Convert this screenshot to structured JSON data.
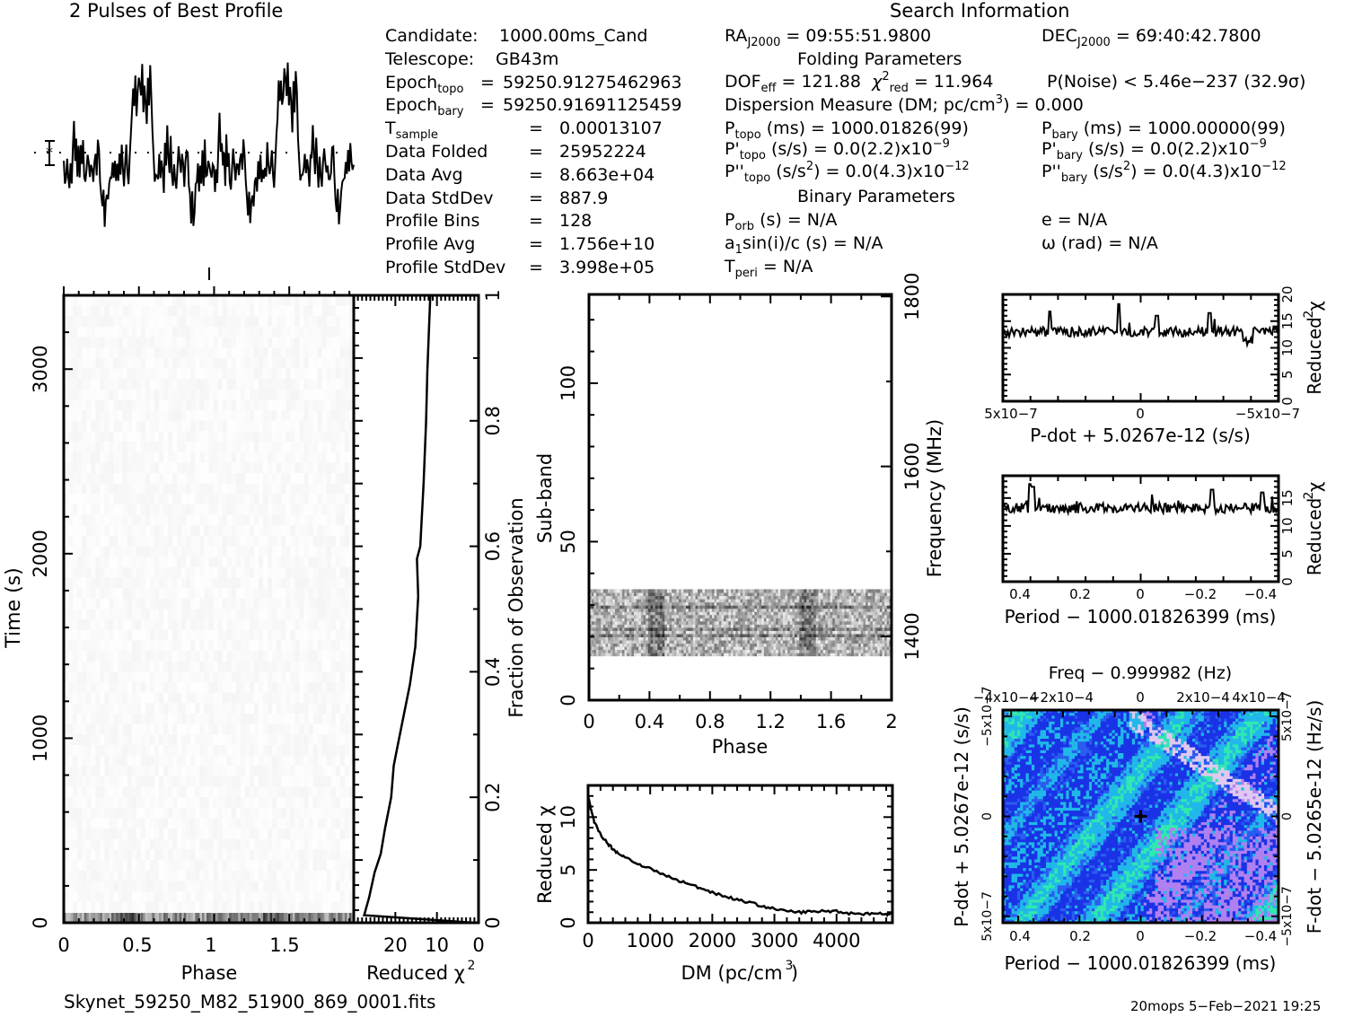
{
  "titles": {
    "profile": "2 Pulses of Best Profile",
    "search_info": "Search Information",
    "folding_params": "Folding Parameters",
    "binary_params": "Binary Parameters"
  },
  "left_info": [
    {
      "label": "Candidate:",
      "value": "1000.00ms_Cand"
    },
    {
      "label": "Telescope:",
      "value": "GB43m"
    },
    {
      "label": "Epoch",
      "sub": "topo",
      "eq": "=",
      "value": "59250.91275462963"
    },
    {
      "label": "Epoch",
      "sub": "bary",
      "eq": "=",
      "value": "59250.91691125459"
    },
    {
      "label": "T",
      "sub": "sample",
      "eq": "=",
      "value": "0.00013107"
    },
    {
      "label": "Data Folded",
      "eq": "=",
      "value": "25952224"
    },
    {
      "label": "Data Avg",
      "eq": "=",
      "value": "8.663e+04"
    },
    {
      "label": "Data StdDev",
      "eq": "=",
      "value": "887.9"
    },
    {
      "label": "Profile Bins",
      "eq": "=",
      "value": "128"
    },
    {
      "label": "Profile Avg",
      "eq": "=",
      "value": "1.756e+10"
    },
    {
      "label": "Profile StdDev",
      "eq": "=",
      "value": "3.998e+05"
    }
  ],
  "search": {
    "ra": {
      "label": "RA",
      "sub": "J2000",
      "value": "= 09:55:51.9800"
    },
    "dec": {
      "label": "DEC",
      "sub": "J2000",
      "value": "= 69:40:42.7800"
    },
    "dof": {
      "label": "DOF",
      "sub": "eff",
      "value": "= 121.88"
    },
    "chi2red": {
      "label": "χ",
      "sup": "2",
      "sub": "red",
      "value": "= 11.964"
    },
    "pnoise": "P(Noise) < 5.46e−237   (32.9σ)",
    "dm": {
      "label": "Dispersion Measure (DM; pc/cm",
      "sup": "3",
      "tail": ") = 0.000"
    },
    "ptopo": {
      "label": "P",
      "sub": "topo",
      "unit": " (ms) = ",
      "value": " 1000.01826(99)"
    },
    "pbary": {
      "label": "P",
      "sub": "bary",
      "unit": " (ms) = ",
      "value": " 1000.00000(99)"
    },
    "pdtopo": {
      "label": "P'",
      "sub": "topo",
      "unit": " (s/s) = ",
      "value": "0.0(2.2)x10",
      "exp": "−9"
    },
    "pdbary": {
      "label": "P'",
      "sub": "bary",
      "unit": " (s/s) = ",
      "value": "0.0(2.2)x10",
      "exp": "−9"
    },
    "pddtopo": {
      "label": "P''",
      "sub": "topo",
      "unit": " (s/s",
      "unitsup": "2",
      "unit2": ") = ",
      "value": "0.0(4.3)x10",
      "exp": "−12"
    },
    "pddbary": {
      "label": "P''",
      "sub": "bary",
      "unit": " (s/s",
      "unitsup": "2",
      "unit2": ") = ",
      "value": "0.0(4.3)x10",
      "exp": "−12"
    },
    "porb": {
      "label": "P",
      "sub": "orb",
      "value": " (s) = N/A"
    },
    "asini": {
      "label": "a",
      "sub": "1",
      "value": "sin(i)/c (s) = N/A"
    },
    "tperi": {
      "label": "T",
      "sub": "peri",
      "value": " = N/A"
    },
    "ecc": "e = N/A",
    "omega": "ω (rad) = N/A"
  },
  "footer": {
    "filename": "Skynet_59250_M82_51900_869_0001.fits",
    "stamp": "20mops   5−Feb−2021 19:25"
  },
  "chart_data": [
    {
      "id": "profile",
      "type": "line",
      "title": "2 Pulses of Best Profile",
      "xlabel": "",
      "ylabel": "",
      "xlim": [
        0,
        2
      ],
      "notes": "Two copies of a 128-bin profile; baseline (dotted) at profile average; broad hump near phase 0.75-0.95",
      "profile_shape": [
        -0.6,
        -0.9,
        -1.1,
        -0.4,
        -0.8,
        -1.3,
        -0.5,
        -1.0,
        0.3,
        1.2,
        -0.2,
        0.6,
        -0.7,
        0.1,
        -1.0,
        0.4,
        -0.3,
        0.2,
        -0.8,
        -1.1,
        -0.4,
        0.1,
        -0.6,
        -0.9,
        -0.2,
        -0.5,
        -1.0,
        -0.3,
        0.2,
        -0.6,
        0.4,
        0.0,
        -0.9,
        -1.7,
        -2.2,
        -1.5,
        -2.8,
        -1.9,
        -1.3,
        -1.7,
        -1.0,
        -0.7,
        -1.2,
        -0.5,
        -0.9,
        -0.3,
        -1.1,
        -0.6,
        -0.8,
        -0.3,
        -0.9,
        0.2,
        -0.5,
        -1.0,
        -0.4,
        0.1,
        -0.8,
        -1.3,
        -0.2,
        0.6,
        1.4,
        2.4,
        1.8,
        2.7,
        1.6,
        2.2,
        3.0,
        2.6,
        2.2,
        3.3,
        1.5,
        2.6,
        2.1,
        1.0,
        2.9,
        1.6,
        3.3,
        2.0,
        0.7,
        -0.2,
        -0.9,
        -0.6,
        -1.1,
        -0.8,
        -0.3,
        -1.0,
        -0.5,
        -0.9,
        -1.2,
        0.2,
        -0.4,
        0.8,
        -0.2,
        -0.7,
        0.4,
        -0.5,
        -1.0,
        -0.2,
        -0.8,
        -1.1,
        -0.4,
        0.1,
        -0.6,
        -0.9,
        -0.3,
        -0.7,
        -1.2,
        -0.5,
        0.2,
        0.0,
        -1.1,
        -1.7,
        -2.4,
        -1.6,
        -2.8,
        -2.0,
        -1.4,
        -1.1,
        -0.7,
        -1.2,
        -0.4,
        -0.9,
        -0.2,
        -1.0,
        0.3,
        -0.6,
        -0.8,
        -0.2
      ]
    },
    {
      "id": "time-phase",
      "type": "heatmap",
      "xlabel": "Phase",
      "ylabel": "Time (s)",
      "xlim": [
        0,
        2
      ],
      "ylim": [
        0,
        3400
      ],
      "xticks": [
        "0",
        "0.5",
        "1",
        "1.5"
      ],
      "yticks": [
        "0",
        "1000",
        "2000",
        "3000"
      ],
      "y2label": "Fraction of Observation",
      "y2ticks": [
        "0",
        "0.2",
        "0.4",
        "0.6",
        "0.8",
        "1"
      ]
    },
    {
      "id": "time-chi2",
      "type": "line",
      "xlabel": "Reduced χ2",
      "xticks": [
        "20",
        "10",
        "0"
      ],
      "xlim": [
        30,
        0
      ],
      "ylim": [
        0,
        1
      ],
      "y": [
        0.0,
        0.012,
        0.04,
        0.08,
        0.11,
        0.15,
        0.2,
        0.25,
        0.28,
        0.33,
        0.38,
        0.44,
        0.52,
        0.58,
        0.6,
        0.7,
        0.8,
        0.88,
        0.95,
        1.0
      ],
      "x": [
        1.0,
        27.5,
        26.3,
        25.0,
        23.5,
        22.5,
        21.0,
        20.4,
        19.5,
        18.0,
        16.5,
        15.2,
        14.5,
        14.8,
        14.0,
        13.2,
        12.6,
        12.3,
        11.9,
        11.6
      ]
    },
    {
      "id": "subband-phase",
      "type": "heatmap",
      "xlabel": "Phase",
      "ylabel": "Sub-band",
      "xlim": [
        0,
        2
      ],
      "ylim": [
        0,
        128
      ],
      "xticks": [
        "0",
        "0.4",
        "0.8",
        "1.2",
        "1.6",
        "2"
      ],
      "yticks": [
        "0",
        "50",
        "100"
      ],
      "y2label": "Frequency (MHz)",
      "y2ticks": [
        "1400",
        "1600",
        "1800"
      ],
      "band_rows": [
        14,
        35
      ]
    },
    {
      "id": "dm-chi2",
      "type": "line",
      "xlabel": "DM (pc/cm3)",
      "ylabel": "Reduced χ2",
      "xlim": [
        0,
        4900
      ],
      "ylim": [
        0,
        13
      ],
      "xticks": [
        "0",
        "1000",
        "2000",
        "3000",
        "4000"
      ],
      "yticks": [
        "0",
        "5",
        "10"
      ],
      "x": [
        0,
        50,
        100,
        200,
        300,
        400,
        500,
        600,
        800,
        1000,
        1200,
        1400,
        1600,
        1800,
        2000,
        2200,
        2400,
        2600,
        2800,
        3000,
        3200,
        3400,
        3600,
        3800,
        4000,
        4200,
        4400,
        4600,
        4800,
        4900
      ],
      "y": [
        12.0,
        10.6,
        9.5,
        8.4,
        7.6,
        7.0,
        6.5,
        6.2,
        5.6,
        5.1,
        4.6,
        4.1,
        3.7,
        3.3,
        2.9,
        2.5,
        2.2,
        1.9,
        1.6,
        1.3,
        1.1,
        1.0,
        1.05,
        1.1,
        1.1,
        0.9,
        0.85,
        0.9,
        0.8,
        0.9
      ]
    },
    {
      "id": "pdot-chi2",
      "type": "line",
      "xlabel": "P-dot + 5.0267e-12 (s/s)",
      "ylabel": "Reduced χ2",
      "xlim": [
        5e-07,
        -5e-07
      ],
      "ylim": [
        0,
        20
      ],
      "xticks": [
        "5x10−7",
        "0",
        "−5x10−7"
      ],
      "yticks": [
        "0",
        "5",
        "10",
        "15",
        "20"
      ],
      "mean": 13.0,
      "peak": 18.2
    },
    {
      "id": "period-chi2",
      "type": "line",
      "xlabel": "Period − 1000.01826399 (ms)",
      "ylabel": "Reduced χ2",
      "xlim": [
        0.46,
        -0.46
      ],
      "ylim": [
        0,
        19
      ],
      "xticks": [
        "0.4",
        "0.2",
        "0",
        "−0.2",
        "−0.4"
      ],
      "yticks": [
        "0",
        "5",
        "10",
        "15"
      ],
      "mean": 13.2,
      "peak": 17.5
    },
    {
      "id": "p-pdot",
      "type": "heatmap",
      "title": "Freq − 0.999982 (Hz)",
      "xlabel": "Period − 1000.01826399 (ms)",
      "ylabel": "P-dot + 5.0267e-12 (s/s)",
      "x2label": "Freq − 0.999982 (Hz)",
      "y2label": "F-dot − 5.0265e-12 (Hz/s)",
      "xticks": [
        "0.4",
        "0.2",
        "0",
        "−0.2",
        "−0.4"
      ],
      "x2ticks": [
        "−4x10−4",
        "−2x10−4",
        "0",
        "2x10−4",
        "4x10−4"
      ],
      "yticks": [
        "−5x10−7",
        "0",
        "5x10−7"
      ],
      "y2ticks": [
        "5x10−7",
        "0",
        "−5x10−7"
      ],
      "colors": [
        "#1a33e6",
        "#2a5cf0",
        "#20b8e8",
        "#30e8b0",
        "#b080f0",
        "#e0c8f0"
      ],
      "best_marker": [
        0,
        0
      ]
    }
  ]
}
